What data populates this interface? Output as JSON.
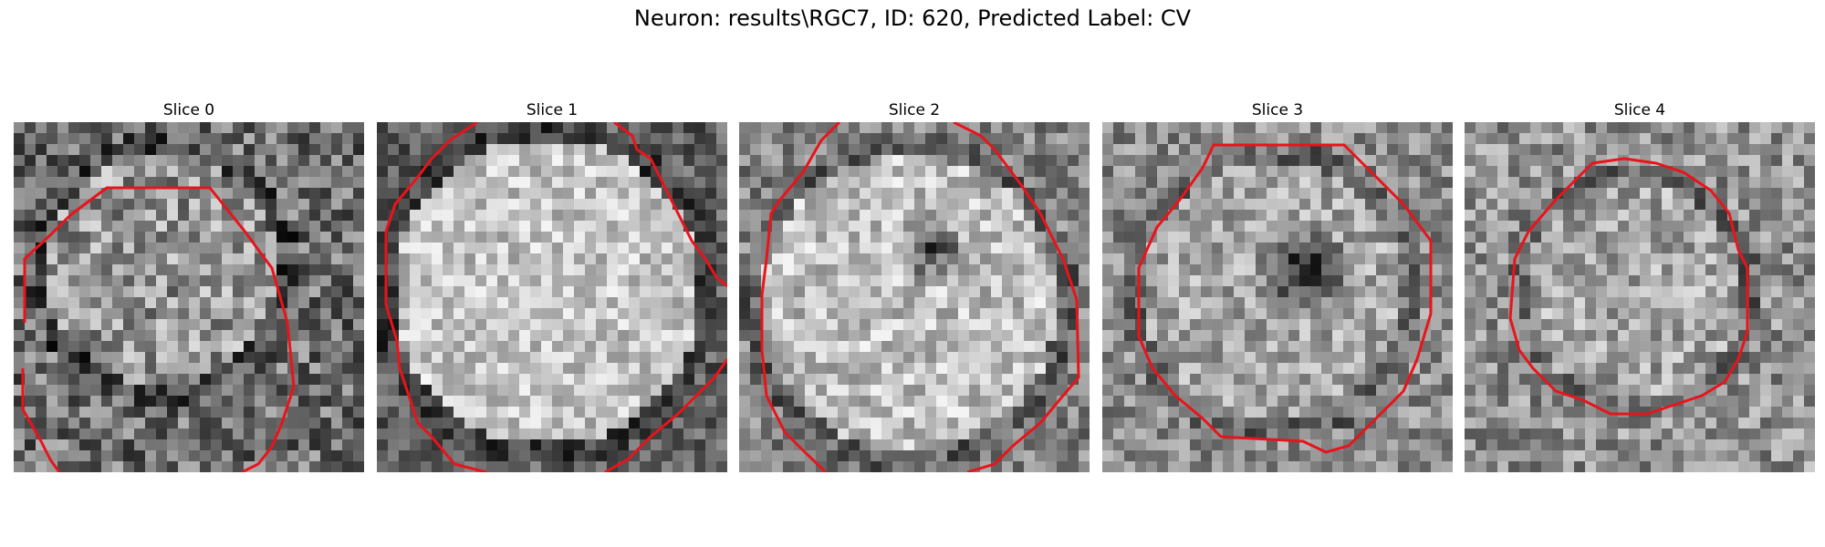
{
  "figure": {
    "suptitle": "Neuron: results\\RGC7, ID: 620, Predicted Label: CV",
    "contour_color": "#e8141b",
    "colormap": "gray",
    "panels": [
      {
        "title": "Slice 0",
        "image_label": "Slice 0 grayscale image"
      },
      {
        "title": "Slice 1",
        "image_label": "Slice 1 grayscale image"
      },
      {
        "title": "Slice 2",
        "image_label": "Slice 2 grayscale image"
      },
      {
        "title": "Slice 3",
        "image_label": "Slice 3 grayscale image"
      },
      {
        "title": "Slice 4",
        "image_label": "Slice 4 grayscale image"
      }
    ]
  }
}
